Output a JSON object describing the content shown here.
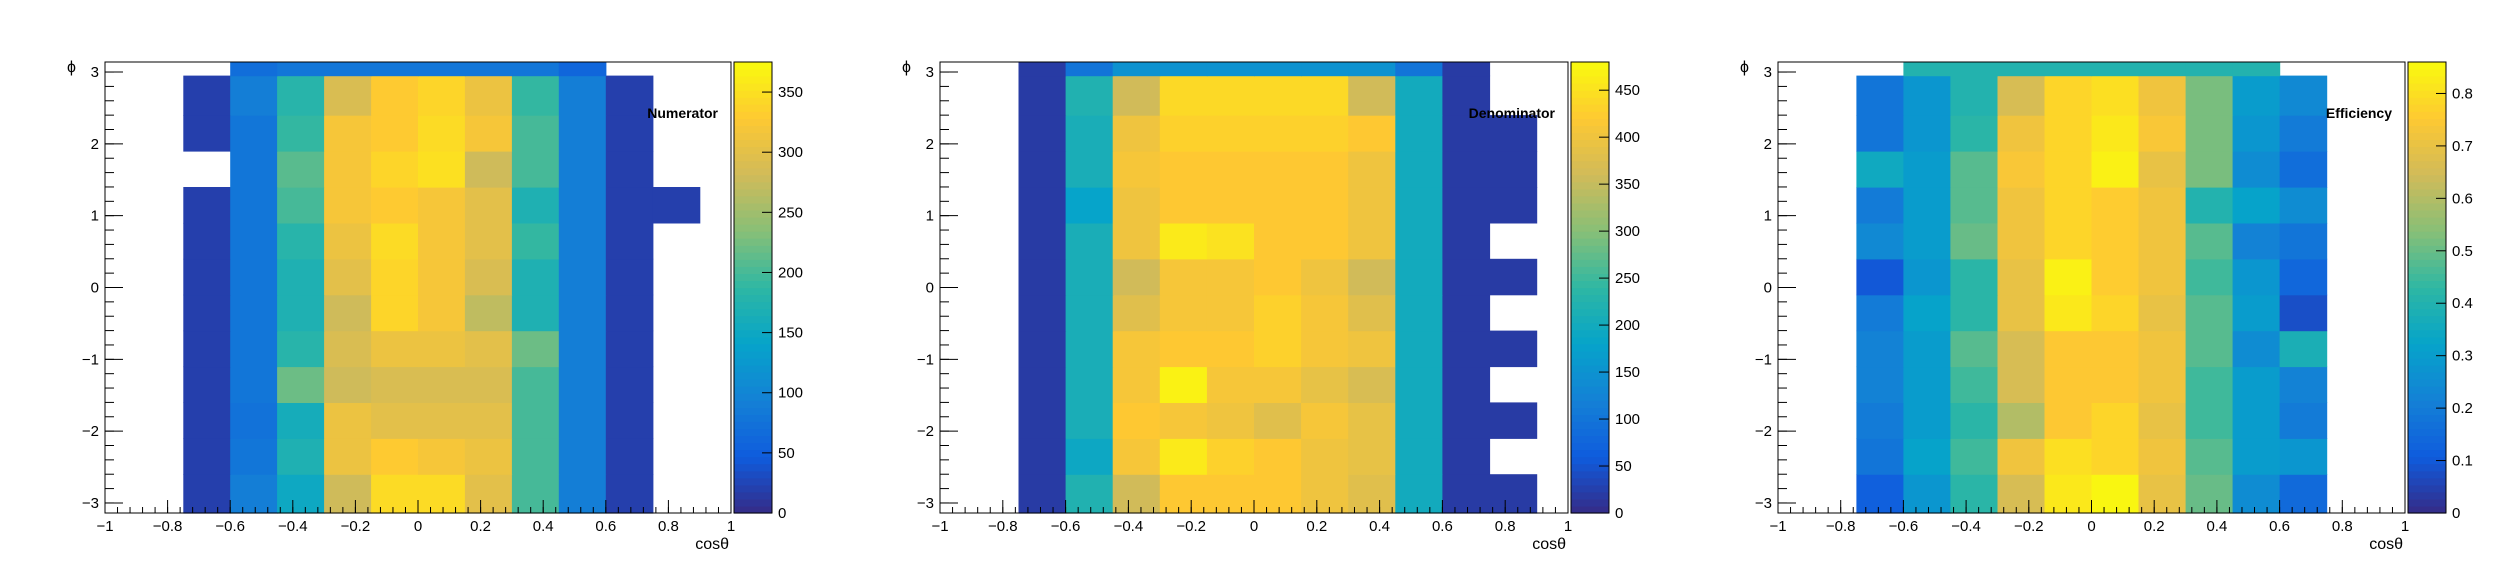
{
  "chart_data": [
    {
      "type": "heatmap",
      "title": "Numerator",
      "xlabel": "cosθ",
      "ylabel": "ϕ",
      "xlim": [
        -1,
        1
      ],
      "ylim": [
        -3.14,
        3.14
      ],
      "x_ticks": [
        "−1",
        "−0.8",
        "−0.6",
        "−0.4",
        "−0.2",
        "0",
        "0.2",
        "0.4",
        "0.6",
        "0.8",
        "1"
      ],
      "y_ticks": [
        "−3",
        "−2",
        "−1",
        "0",
        "1",
        "2",
        "3"
      ],
      "x_bin_edges": [
        -0.75,
        -0.6,
        -0.45,
        -0.3,
        -0.15,
        0,
        0.15,
        0.3,
        0.45,
        0.6,
        0.75,
        0.9
      ],
      "y_bin_edges": [
        -3.14,
        -2.6,
        -2.1,
        -1.6,
        -1.1,
        -0.6,
        -0.1,
        0.4,
        0.9,
        1.4,
        1.9,
        2.4,
        2.95,
        3.14
      ],
      "z_range": [
        0,
        375
      ],
      "colorbar_ticks": [
        "0",
        "50",
        "100",
        "150",
        "200",
        "250",
        "300",
        "350"
      ],
      "colorbar_values": [
        0,
        50,
        100,
        150,
        200,
        250,
        300,
        350
      ],
      "bins": [
        [
          20,
          90,
          150,
          280,
          345,
          345,
          300,
          200,
          90,
          20,
          null
        ],
        [
          20,
          80,
          170,
          310,
          330,
          320,
          310,
          200,
          90,
          20,
          null
        ],
        [
          20,
          75,
          160,
          310,
          300,
          300,
          300,
          200,
          90,
          20,
          null
        ],
        [
          20,
          80,
          220,
          280,
          290,
          290,
          290,
          200,
          90,
          20,
          null
        ],
        [
          20,
          80,
          180,
          290,
          310,
          310,
          300,
          220,
          90,
          20,
          null
        ],
        [
          20,
          80,
          170,
          280,
          340,
          320,
          270,
          170,
          90,
          20,
          null
        ],
        [
          20,
          80,
          170,
          300,
          340,
          320,
          290,
          170,
          90,
          20,
          null
        ],
        [
          20,
          80,
          180,
          310,
          345,
          320,
          300,
          190,
          90,
          20,
          null
        ],
        [
          20,
          80,
          200,
          320,
          330,
          320,
          300,
          170,
          90,
          20,
          20
        ],
        [
          null,
          80,
          210,
          320,
          340,
          350,
          280,
          200,
          90,
          20,
          null
        ],
        [
          20,
          80,
          190,
          320,
          330,
          345,
          320,
          200,
          90,
          20,
          null
        ],
        [
          20,
          90,
          180,
          290,
          330,
          340,
          310,
          190,
          90,
          20,
          null
        ],
        [
          null,
          70,
          80,
          80,
          80,
          80,
          80,
          80,
          60,
          null,
          null
        ]
      ]
    },
    {
      "type": "heatmap",
      "title": "Denominator",
      "xlabel": "cosθ",
      "ylabel": "ϕ",
      "xlim": [
        -1,
        1
      ],
      "ylim": [
        -3.14,
        3.14
      ],
      "x_ticks": [
        "−1",
        "−0.8",
        "−0.6",
        "−0.4",
        "−0.2",
        "0",
        "0.2",
        "0.4",
        "0.6",
        "0.8",
        "1"
      ],
      "y_ticks": [
        "−3",
        "−2",
        "−1",
        "0",
        "1",
        "2",
        "3"
      ],
      "x_bin_edges": [
        -0.75,
        -0.6,
        -0.45,
        -0.3,
        -0.15,
        0,
        0.15,
        0.3,
        0.45,
        0.6,
        0.75,
        0.9
      ],
      "y_bin_edges": [
        -3.14,
        -2.6,
        -2.1,
        -1.6,
        -1.1,
        -0.6,
        -0.1,
        0.4,
        0.9,
        1.4,
        1.9,
        2.4,
        2.95,
        3.14
      ],
      "z_range": [
        0,
        480
      ],
      "colorbar_ticks": [
        "0",
        "50",
        "100",
        "150",
        "200",
        "250",
        "300",
        "350",
        "400",
        "450"
      ],
      "colorbar_values": [
        0,
        50,
        100,
        150,
        200,
        250,
        300,
        350,
        400,
        450
      ],
      "bins": [
        [
          20,
          220,
          360,
          420,
          420,
          420,
          400,
          380,
          200,
          20,
          20
        ],
        [
          20,
          190,
          410,
          460,
          430,
          420,
          400,
          390,
          200,
          20,
          null
        ],
        [
          20,
          210,
          420,
          410,
          400,
          380,
          410,
          390,
          200,
          20,
          20
        ],
        [
          20,
          210,
          410,
          470,
          410,
          410,
          390,
          370,
          200,
          20,
          null
        ],
        [
          20,
          210,
          410,
          420,
          420,
          430,
          410,
          400,
          200,
          20,
          20
        ],
        [
          20,
          210,
          380,
          410,
          410,
          430,
          410,
          380,
          200,
          20,
          null
        ],
        [
          20,
          210,
          360,
          410,
          410,
          420,
          400,
          360,
          200,
          20,
          20
        ],
        [
          20,
          210,
          400,
          460,
          450,
          420,
          420,
          400,
          200,
          20,
          null
        ],
        [
          20,
          180,
          400,
          420,
          420,
          420,
          420,
          400,
          200,
          20,
          20
        ],
        [
          20,
          210,
          410,
          420,
          420,
          420,
          420,
          400,
          200,
          20,
          20
        ],
        [
          20,
          210,
          400,
          430,
          430,
          430,
          430,
          420,
          200,
          20,
          20
        ],
        [
          20,
          220,
          360,
          440,
          440,
          440,
          440,
          360,
          200,
          20,
          null
        ],
        [
          20,
          100,
          150,
          150,
          150,
          150,
          150,
          150,
          100,
          20,
          null
        ]
      ]
    },
    {
      "type": "heatmap",
      "title": "Efficiency",
      "xlabel": "cosθ",
      "ylabel": "ϕ",
      "xlim": [
        -1,
        1
      ],
      "ylim": [
        -3.14,
        3.14
      ],
      "x_ticks": [
        "−1",
        "−0.8",
        "−0.6",
        "−0.4",
        "−0.2",
        "0",
        "0.2",
        "0.4",
        "0.6",
        "0.8",
        "1"
      ],
      "y_ticks": [
        "−3",
        "−2",
        "−1",
        "0",
        "1",
        "2",
        "3"
      ],
      "x_bin_edges": [
        -0.75,
        -0.6,
        -0.45,
        -0.3,
        -0.15,
        0,
        0.15,
        0.3,
        0.45,
        0.6,
        0.75,
        0.9
      ],
      "y_bin_edges": [
        -3.14,
        -2.6,
        -2.1,
        -1.6,
        -1.1,
        -0.6,
        -0.1,
        0.4,
        0.9,
        1.4,
        1.9,
        2.4,
        2.95,
        3.14
      ],
      "z_range": [
        0,
        0.86
      ],
      "colorbar_ticks": [
        "0",
        "0.1",
        "0.2",
        "0.3",
        "0.4",
        "0.5",
        "0.6",
        "0.7",
        "0.8"
      ],
      "colorbar_values": [
        0,
        0.1,
        0.2,
        0.3,
        0.4,
        0.5,
        0.6,
        0.7,
        0.8
      ],
      "bins": [
        [
          0.12,
          0.28,
          0.42,
          0.66,
          0.82,
          0.85,
          0.7,
          0.5,
          0.25,
          0.15,
          null
        ],
        [
          0.18,
          0.32,
          0.45,
          0.72,
          0.8,
          0.78,
          0.72,
          0.48,
          0.3,
          0.28,
          null
        ],
        [
          0.2,
          0.3,
          0.42,
          0.6,
          0.75,
          0.78,
          0.7,
          0.45,
          0.3,
          0.2,
          null
        ],
        [
          0.22,
          0.3,
          0.45,
          0.66,
          0.75,
          0.75,
          0.72,
          0.45,
          0.3,
          0.22,
          null
        ],
        [
          0.22,
          0.3,
          0.48,
          0.66,
          0.75,
          0.75,
          0.72,
          0.48,
          0.25,
          0.38,
          null
        ],
        [
          0.2,
          0.32,
          0.42,
          0.7,
          0.82,
          0.78,
          0.7,
          0.48,
          0.3,
          0.08,
          null
        ],
        [
          0.1,
          0.28,
          0.42,
          0.7,
          0.84,
          0.76,
          0.72,
          0.45,
          0.28,
          0.14,
          null
        ],
        [
          0.24,
          0.3,
          0.5,
          0.72,
          0.78,
          0.76,
          0.72,
          0.48,
          0.22,
          0.18,
          null
        ],
        [
          0.2,
          0.3,
          0.48,
          0.72,
          0.78,
          0.76,
          0.72,
          0.4,
          0.32,
          0.25,
          null
        ],
        [
          0.35,
          0.3,
          0.48,
          0.74,
          0.78,
          0.84,
          0.7,
          0.52,
          0.25,
          0.16,
          null
        ],
        [
          0.18,
          0.28,
          0.42,
          0.72,
          0.78,
          0.82,
          0.74,
          0.52,
          0.28,
          0.2,
          null
        ],
        [
          0.18,
          0.28,
          0.4,
          0.66,
          0.78,
          0.8,
          0.72,
          0.52,
          0.3,
          0.24,
          null
        ],
        [
          null,
          0.4,
          0.4,
          0.4,
          0.4,
          0.4,
          0.4,
          0.4,
          0.4,
          null,
          null
        ]
      ]
    }
  ]
}
